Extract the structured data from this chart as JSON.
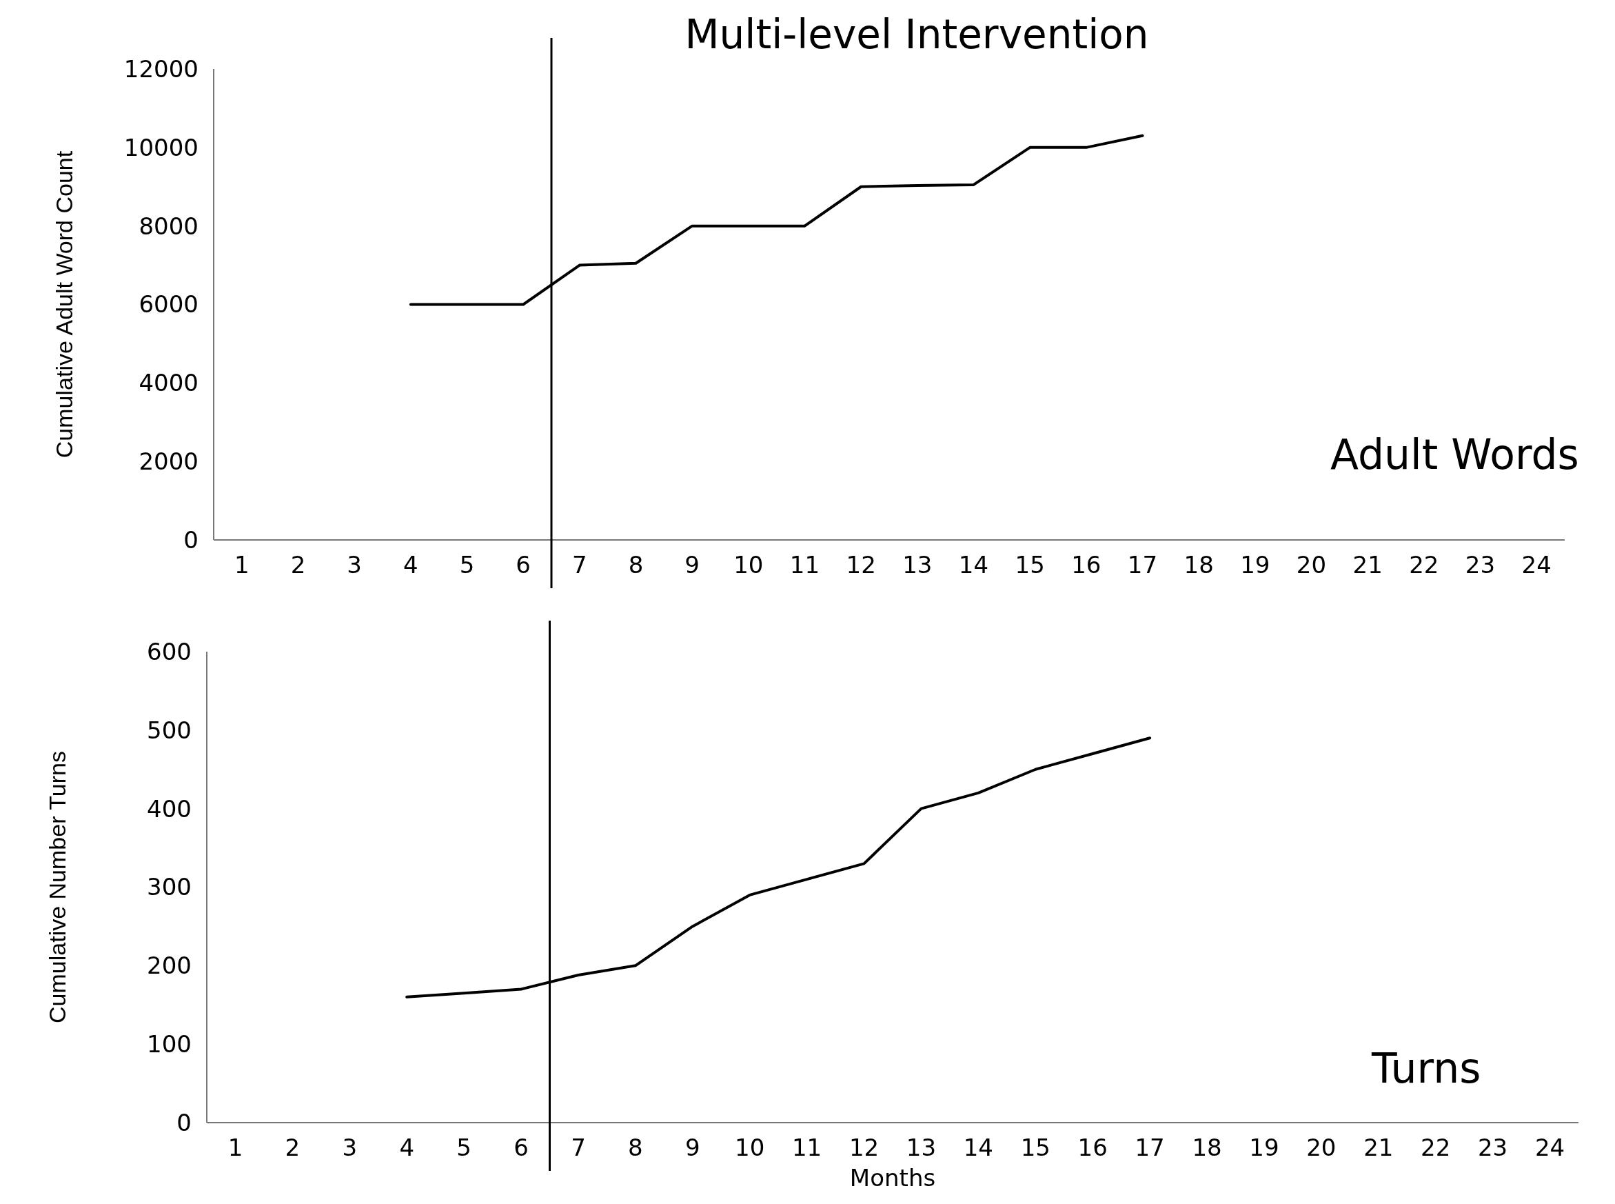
{
  "chart_data": [
    {
      "type": "line",
      "title": "Multi-level Intervention",
      "ylabel": "Cumulative Adult Word Count",
      "annotations": [
        "Adult Words"
      ],
      "xlim": [
        0.5,
        24.5
      ],
      "xticks": [
        1,
        2,
        3,
        4,
        5,
        6,
        7,
        8,
        9,
        10,
        11,
        12,
        13,
        14,
        15,
        16,
        17,
        18,
        19,
        20,
        21,
        22,
        23,
        24
      ],
      "ylim": [
        0,
        12000
      ],
      "yticks": [
        0,
        2000,
        4000,
        6000,
        8000,
        10000,
        12000
      ],
      "grid": false,
      "marker": "none",
      "line_style": "solid",
      "x": [
        4,
        5,
        6,
        7,
        8,
        9,
        10,
        11,
        12,
        13,
        14,
        15,
        16,
        17
      ],
      "series": [
        {
          "color": "#000000",
          "values": [
            6000,
            6000,
            6000,
            7000,
            7050,
            8000,
            8000,
            8000,
            9000,
            9030,
            9050,
            10000,
            10000,
            10300
          ]
        }
      ],
      "ref_lines": [
        {
          "axis": "x",
          "value": 6.5,
          "color": "#000000"
        }
      ]
    },
    {
      "type": "line",
      "xlabel": "Months",
      "ylabel": "Cumulative Number Turns",
      "annotations": [
        "Turns"
      ],
      "xlim": [
        0.5,
        24.5
      ],
      "xticks": [
        1,
        2,
        3,
        4,
        5,
        6,
        7,
        8,
        9,
        10,
        11,
        12,
        13,
        14,
        15,
        16,
        17,
        18,
        19,
        20,
        21,
        22,
        23,
        24
      ],
      "ylim": [
        0,
        600
      ],
      "yticks": [
        0,
        100,
        200,
        300,
        400,
        500,
        600
      ],
      "grid": false,
      "marker": "none",
      "line_style": "solid",
      "x": [
        4,
        5,
        6,
        7,
        8,
        9,
        10,
        11,
        12,
        13,
        14,
        15,
        16,
        17
      ],
      "series": [
        {
          "color": "#000000",
          "values": [
            160,
            165,
            170,
            188,
            200,
            250,
            290,
            310,
            330,
            400,
            420,
            450,
            470,
            490
          ]
        }
      ],
      "ref_lines": [
        {
          "axis": "x",
          "value": 6.5,
          "color": "#000000"
        }
      ]
    }
  ]
}
